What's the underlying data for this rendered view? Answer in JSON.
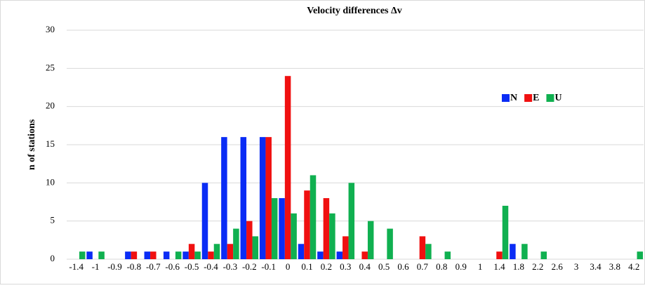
{
  "chart_data": {
    "type": "bar",
    "title": "Velocity differences Δv",
    "y_label": "n of stations",
    "categories": [
      "-1.4",
      "-1",
      "-0.9",
      "-0.8",
      "-0.7",
      "-0.6",
      "-0.5",
      "-0.4",
      "-0.3",
      "-0.2",
      "-0.1",
      "0",
      "0.1",
      "0.2",
      "0.3",
      "0.4",
      "0.5",
      "0.6",
      "0.7",
      "0.8",
      "0.9",
      "1",
      "1.4",
      "1.8",
      "2.2",
      "2.6",
      "3",
      "3.4",
      "3.8",
      "4.2"
    ],
    "series": [
      {
        "name": "N",
        "color": "#0a2cf5",
        "values": [
          0,
          1,
          0,
          1,
          1,
          1,
          1,
          10,
          16,
          16,
          16,
          8,
          2,
          1,
          1,
          0,
          0,
          0,
          0,
          0,
          0,
          0,
          0,
          2,
          0,
          0,
          0,
          0,
          0,
          0
        ]
      },
      {
        "name": "E",
        "color": "#f01010",
        "values": [
          0,
          0,
          0,
          1,
          1,
          0,
          2,
          1,
          2,
          5,
          16,
          24,
          9,
          8,
          3,
          1,
          0,
          0,
          3,
          0,
          0,
          0,
          1,
          0,
          0,
          0,
          0,
          0,
          0,
          0
        ]
      },
      {
        "name": "U",
        "color": "#10b050",
        "values": [
          1,
          1,
          0,
          0,
          0,
          1,
          1,
          2,
          4,
          3,
          8,
          6,
          11,
          6,
          10,
          5,
          4,
          0,
          2,
          1,
          0,
          0,
          7,
          2,
          1,
          0,
          0,
          0,
          0,
          1
        ]
      }
    ],
    "ylim": [
      0,
      30
    ],
    "yticks": [
      0,
      5,
      10,
      15,
      20,
      25,
      30
    ],
    "grid": true,
    "legend": "upper right"
  }
}
